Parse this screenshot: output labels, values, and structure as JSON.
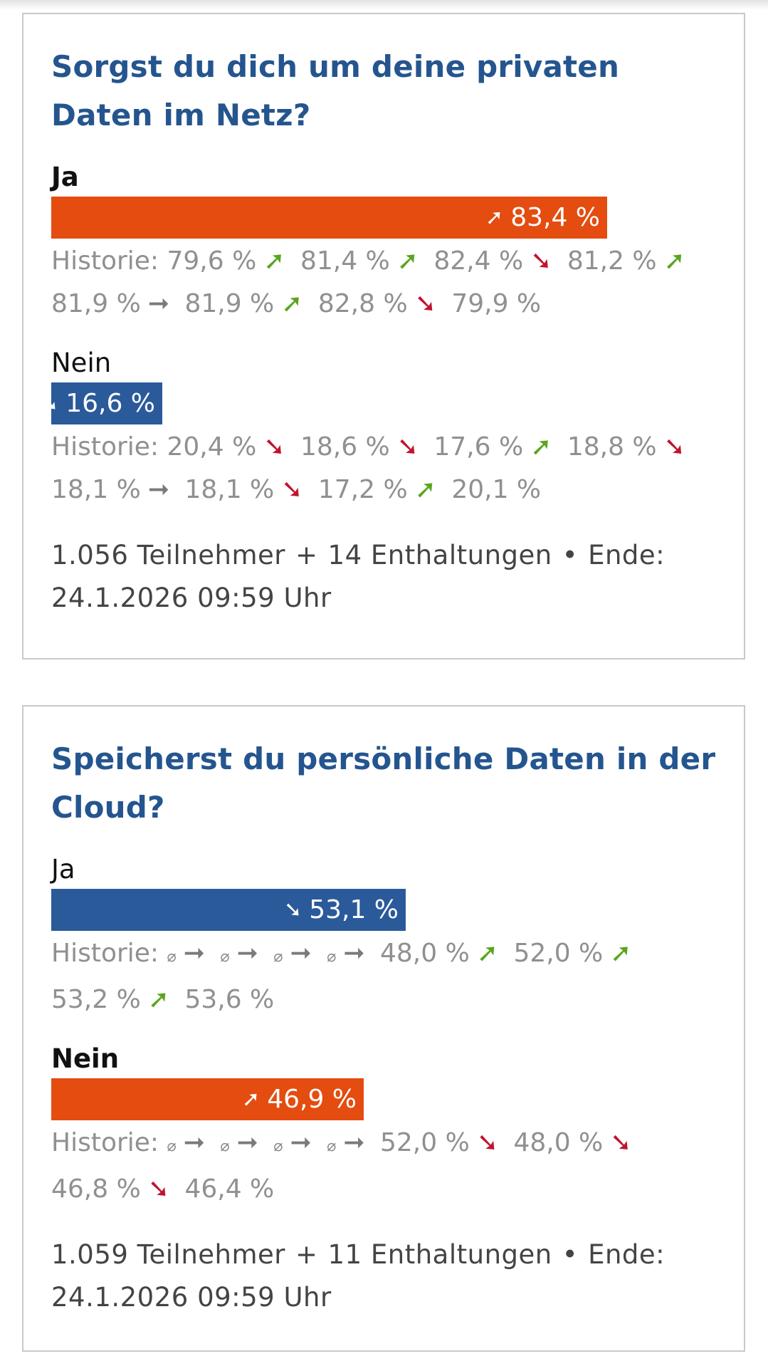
{
  "polls": [
    {
      "question": "Sorgst du dich um deine privaten Daten im Netz?",
      "options": [
        {
          "label": "Ja",
          "percent_text": "83,4 %",
          "percent_value": 83.4,
          "trend": "up",
          "color": "#e44c10",
          "history_label": "Historie:",
          "history": [
            "79,6 %",
            "81,4 %",
            "82,4 %",
            "81,2 %",
            "81,9 %",
            "81,9 %",
            "82,8 %",
            "79,9 %"
          ],
          "history_trends": [
            "up",
            "up",
            "down",
            "up",
            "flat",
            "up",
            "down"
          ]
        },
        {
          "label": "Nein",
          "percent_text": "16,6 %",
          "percent_value": 16.6,
          "trend": "down",
          "color": "#2a5a9a",
          "history_label": "Historie:",
          "history": [
            "20,4 %",
            "18,6 %",
            "17,6 %",
            "18,8 %",
            "18,1 %",
            "18,1 %",
            "17,2 %",
            "20,1 %"
          ],
          "history_trends": [
            "down",
            "down",
            "up",
            "down",
            "flat",
            "down",
            "up"
          ]
        }
      ],
      "participants": "1.056 Teilnehmer",
      "abstentions": "14 Enthaltungen",
      "end_label": "Ende:",
      "end_date": "24.1.2026 09:59 Uhr"
    },
    {
      "question": "Speicherst du persönliche Daten in der Cloud?",
      "options": [
        {
          "label": "Ja",
          "percent_text": "53,1 %",
          "percent_value": 53.1,
          "trend": "down",
          "color": "#2a5a9a",
          "history_label": "Historie:",
          "history": [
            "⌀",
            "⌀",
            "⌀",
            "⌀",
            "48,0 %",
            "52,0 %",
            "53,2 %",
            "53,6 %"
          ],
          "history_trends": [
            "flat",
            "flat",
            "flat",
            "flat",
            "up",
            "up",
            "up"
          ]
        },
        {
          "label": "Nein",
          "percent_text": "46,9 %",
          "percent_value": 46.9,
          "trend": "up",
          "color": "#e44c10",
          "history_label": "Historie:",
          "history": [
            "⌀",
            "⌀",
            "⌀",
            "⌀",
            "52,0 %",
            "48,0 %",
            "46,8 %",
            "46,4 %"
          ],
          "history_trends": [
            "flat",
            "flat",
            "flat",
            "flat",
            "down",
            "down",
            "down"
          ]
        }
      ],
      "participants": "1.059 Teilnehmer",
      "abstentions": "11 Enthaltungen",
      "end_label": "Ende:",
      "end_date": "24.1.2026 09:59 Uhr"
    }
  ],
  "footer_plus": "+",
  "footer_dot": "•",
  "icons": {
    "up": "trend-up-arrow-icon",
    "down": "trend-down-arrow-icon",
    "flat": "trend-flat-arrow-icon"
  }
}
